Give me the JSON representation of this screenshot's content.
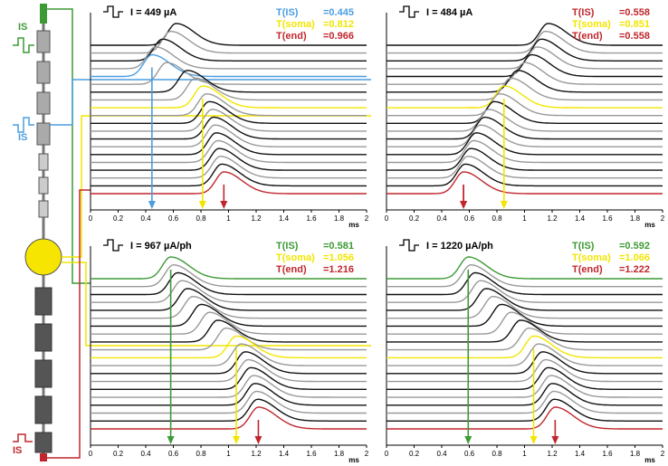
{
  "chart_data": [
    {
      "type": "line",
      "title": "I = 449 µA",
      "xlabel": "ms",
      "xlim": [
        0,
        2
      ],
      "xticks": [
        0,
        0.2,
        0.4,
        0.6,
        0.8,
        1,
        1.2,
        1.4,
        1.6,
        1.8,
        2
      ],
      "annotations": [
        {
          "name": "T(IS)",
          "value": 0.445,
          "value_label": "=0.445",
          "color": "#4a9de0"
        },
        {
          "name": "T(soma)",
          "value": 0.812,
          "value_label": "=0.812",
          "color": "#f2e600"
        },
        {
          "name": "T(end)",
          "value": 0.966,
          "value_label": "=0.966",
          "color": "#c0272d"
        }
      ],
      "peaks": [
        0.62,
        0.58,
        0.52,
        0.47,
        0.445,
        0.55,
        0.7,
        0.76,
        0.812,
        0.84,
        0.86,
        0.88,
        0.89,
        0.9,
        0.91,
        0.92,
        0.93,
        0.94,
        0.95,
        0.966
      ],
      "colors": [
        "#111",
        "#999",
        "#111",
        "#999",
        "#4a9de0",
        "#999",
        "#111",
        "#999",
        "#f2e600",
        "#999",
        "#111",
        "#999",
        "#111",
        "#999",
        "#111",
        "#999",
        "#111",
        "#999",
        "#111",
        "#c0272d"
      ]
    },
    {
      "type": "line",
      "title": "I = 484 µA",
      "xlabel": "ms",
      "xlim": [
        0,
        2
      ],
      "xticks": [
        0,
        0.2,
        0.4,
        0.6,
        0.8,
        1,
        1.2,
        1.4,
        1.6,
        1.8,
        2
      ],
      "annotations": [
        {
          "name": "T(IS)",
          "value": 0.558,
          "value_label": "=0.558",
          "color": "#c0272d"
        },
        {
          "name": "T(soma)",
          "value": 0.851,
          "value_label": "=0.851",
          "color": "#f2e600"
        },
        {
          "name": "T(end)",
          "value": 0.558,
          "value_label": "=0.558",
          "color": "#c0272d"
        }
      ],
      "peaks": [
        1.17,
        1.15,
        1.12,
        1.09,
        1.05,
        1.0,
        0.95,
        0.9,
        0.851,
        0.82,
        0.78,
        0.74,
        0.71,
        0.68,
        0.65,
        0.63,
        0.61,
        0.59,
        0.57,
        0.558
      ],
      "colors": [
        "#111",
        "#999",
        "#111",
        "#999",
        "#111",
        "#999",
        "#111",
        "#999",
        "#f2e600",
        "#999",
        "#111",
        "#999",
        "#111",
        "#999",
        "#111",
        "#999",
        "#111",
        "#999",
        "#111",
        "#c0272d"
      ]
    },
    {
      "type": "line",
      "title": "I = 967 µA/ph",
      "xlabel": "ms",
      "xlim": [
        0,
        2
      ],
      "xticks": [
        0,
        0.2,
        0.4,
        0.6,
        0.8,
        1,
        1.2,
        1.4,
        1.6,
        1.8,
        2
      ],
      "annotations": [
        {
          "name": "T(IS)",
          "value": 0.581,
          "value_label": "=0.581",
          "color": "#3d9a35"
        },
        {
          "name": "T(soma)",
          "value": 1.056,
          "value_label": "=1.056",
          "color": "#f2e600"
        },
        {
          "name": "T(end)",
          "value": 1.216,
          "value_label": "=1.216",
          "color": "#c0272d"
        }
      ],
      "peaks": [
        0.581,
        0.6,
        0.63,
        0.66,
        0.7,
        0.74,
        0.8,
        0.86,
        0.92,
        0.98,
        1.056,
        1.09,
        1.12,
        1.14,
        1.16,
        1.18,
        1.19,
        1.2,
        1.21,
        1.216
      ],
      "colors": [
        "#3d9a35",
        "#999",
        "#111",
        "#999",
        "#111",
        "#999",
        "#111",
        "#999",
        "#111",
        "#999",
        "#f2e600",
        "#999",
        "#111",
        "#999",
        "#111",
        "#999",
        "#111",
        "#999",
        "#111",
        "#c0272d"
      ]
    },
    {
      "type": "line",
      "title": "I = 1220 µA/ph",
      "xlabel": "ms",
      "xlim": [
        0,
        2
      ],
      "xticks": [
        0,
        0.2,
        0.4,
        0.6,
        0.8,
        1,
        1.2,
        1.4,
        1.6,
        1.8,
        2
      ],
      "annotations": [
        {
          "name": "T(IS)",
          "value": 0.592,
          "value_label": "=0.592",
          "color": "#3d9a35"
        },
        {
          "name": "T(soma)",
          "value": 1.066,
          "value_label": "=1.066",
          "color": "#f2e600"
        },
        {
          "name": "T(end)",
          "value": 1.222,
          "value_label": "=1.222",
          "color": "#c0272d"
        }
      ],
      "peaks": [
        0.592,
        0.61,
        0.64,
        0.68,
        0.72,
        0.77,
        0.83,
        0.9,
        0.97,
        1.03,
        1.066,
        1.1,
        1.13,
        1.15,
        1.17,
        1.19,
        1.2,
        1.21,
        1.215,
        1.222
      ],
      "colors": [
        "#3d9a35",
        "#999",
        "#111",
        "#999",
        "#111",
        "#999",
        "#111",
        "#999",
        "#111",
        "#999",
        "#f2e600",
        "#999",
        "#111",
        "#999",
        "#111",
        "#999",
        "#111",
        "#999",
        "#111",
        "#c0272d"
      ]
    }
  ],
  "stimulus_labels": [
    "IS",
    "IS",
    "IS"
  ]
}
